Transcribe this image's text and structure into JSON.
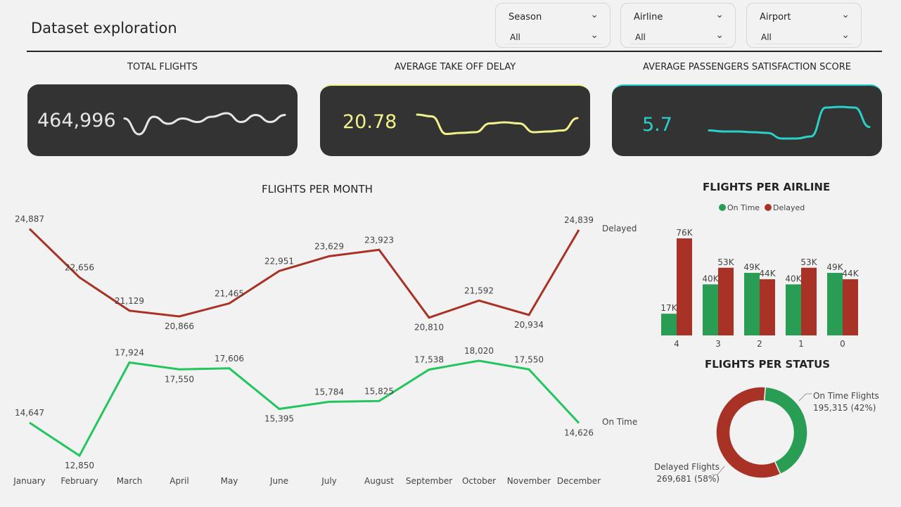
{
  "page": {
    "title": "Dataset exploration"
  },
  "slicers": [
    {
      "label": "Season",
      "value": "All"
    },
    {
      "label": "Airline",
      "value": "All"
    },
    {
      "label": "Airport",
      "value": "All"
    }
  ],
  "kpis": [
    {
      "title": "TOTAL FLIGHTS",
      "value": "464,996",
      "color": "#e6e6e6",
      "spark": [
        0.55,
        0.1,
        0.6,
        0.4,
        0.55,
        0.45,
        0.6,
        0.7,
        0.45,
        0.65,
        0.45,
        0.65
      ]
    },
    {
      "title": "AVERAGE TAKE OFF DELAY",
      "value": "20.78",
      "color": "#f2f28a",
      "spark": [
        0.7,
        0.65,
        0.15,
        0.18,
        0.2,
        0.45,
        0.48,
        0.45,
        0.2,
        0.22,
        0.25,
        0.6
      ]
    },
    {
      "title": "AVERAGE PASSENGERS SATISFACTION SCORE",
      "value": "5.7",
      "color": "#2bd1c9",
      "spark": [
        0.25,
        0.22,
        0.22,
        0.2,
        0.18,
        0.02,
        0.02,
        0.08,
        0.9,
        0.92,
        0.9,
        0.35
      ]
    }
  ],
  "colors": {
    "delayed": "#a93226",
    "on_time": "#2a9d55",
    "on_time_line": "#22c55e"
  },
  "chart_data": [
    {
      "type": "line",
      "title": "FLIGHTS PER MONTH",
      "categories": [
        "January",
        "February",
        "March",
        "April",
        "May",
        "June",
        "July",
        "August",
        "September",
        "October",
        "November",
        "December"
      ],
      "series": [
        {
          "name": "Delayed",
          "values": [
            24887,
            22656,
            21129,
            20866,
            21465,
            22951,
            23629,
            23923,
            20810,
            21592,
            20934,
            24839
          ],
          "labels": [
            "24,887",
            "22,656",
            "21,129",
            "20,866",
            "21,465",
            "22,951",
            "23,629",
            "23,923",
            "20,810",
            "21,592",
            "20,934",
            "24,839"
          ]
        },
        {
          "name": "On Time",
          "values": [
            14647,
            12850,
            17924,
            17550,
            17606,
            15395,
            15784,
            15825,
            17538,
            18020,
            17550,
            14626
          ],
          "labels": [
            "14,647",
            "12,850",
            "17,924",
            "17,550",
            "17,606",
            "15,395",
            "15,784",
            "15,825",
            "17,538",
            "18,020",
            "17,550",
            "14,626"
          ]
        }
      ]
    },
    {
      "type": "bar",
      "title": "FLIGHTS PER AIRLINE",
      "categories": [
        "4",
        "3",
        "2",
        "1",
        "0"
      ],
      "series": [
        {
          "name": "On Time",
          "values": [
            17,
            40,
            49,
            40,
            49
          ],
          "labels": [
            "17K",
            "40K",
            "49K",
            "40K",
            "49K"
          ]
        },
        {
          "name": "Delayed",
          "values": [
            76,
            53,
            44,
            53,
            44
          ],
          "labels": [
            "76K",
            "53K",
            "44K",
            "53K",
            "44K"
          ]
        }
      ],
      "legend": "top"
    },
    {
      "type": "pie",
      "title": "FLIGHTS PER STATUS",
      "slices": [
        {
          "name": "On Time Flights",
          "value": 195315,
          "label": "195,315 (42%)"
        },
        {
          "name": "Delayed Flights",
          "value": 269681,
          "label": "269,681 (58%)"
        }
      ]
    }
  ]
}
